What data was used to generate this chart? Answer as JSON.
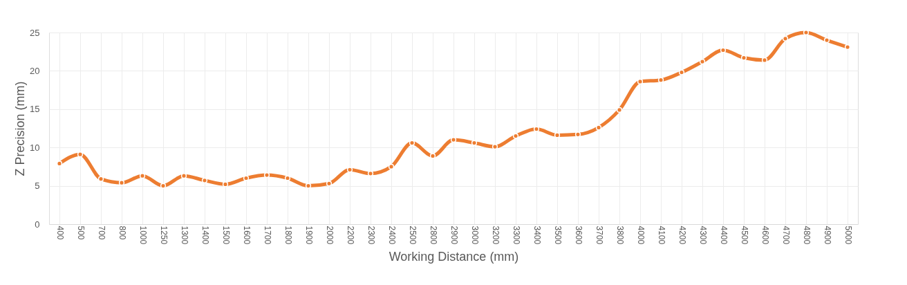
{
  "chart_data": {
    "type": "line",
    "xlabel": "Working Distance (mm)",
    "ylabel": "Z Precision (mm)",
    "categories": [
      "400",
      "500",
      "700",
      "800",
      "1000",
      "1250",
      "1300",
      "1400",
      "1500",
      "1600",
      "1700",
      "1800",
      "1900",
      "2000",
      "2200",
      "2300",
      "2400",
      "2500",
      "2800",
      "2900",
      "3000",
      "3200",
      "3300",
      "3400",
      "3500",
      "3600",
      "3700",
      "3800",
      "4000",
      "4100",
      "4200",
      "4300",
      "4400",
      "4500",
      "4600",
      "4700",
      "4800",
      "4900",
      "5000"
    ],
    "series": [
      {
        "color": "#ed7d31",
        "values": [
          7.9,
          9.1,
          5.9,
          5.4,
          6.3,
          5.0,
          6.3,
          5.7,
          5.2,
          6.0,
          6.4,
          6.0,
          5.0,
          5.3,
          7.1,
          6.6,
          7.5,
          10.6,
          8.9,
          11.0,
          10.6,
          10.1,
          11.5,
          12.4,
          11.6,
          11.7,
          12.6,
          14.9,
          18.6,
          18.8,
          19.8,
          21.2,
          22.7,
          21.7,
          21.4,
          24.2,
          25.0,
          24.0,
          23.1
        ]
      }
    ],
    "ylim": [
      0,
      25
    ],
    "yticks": [
      0,
      5,
      10,
      15,
      20,
      25
    ],
    "grid": true,
    "marker": "circle",
    "line_style": "solid",
    "legend": false
  }
}
